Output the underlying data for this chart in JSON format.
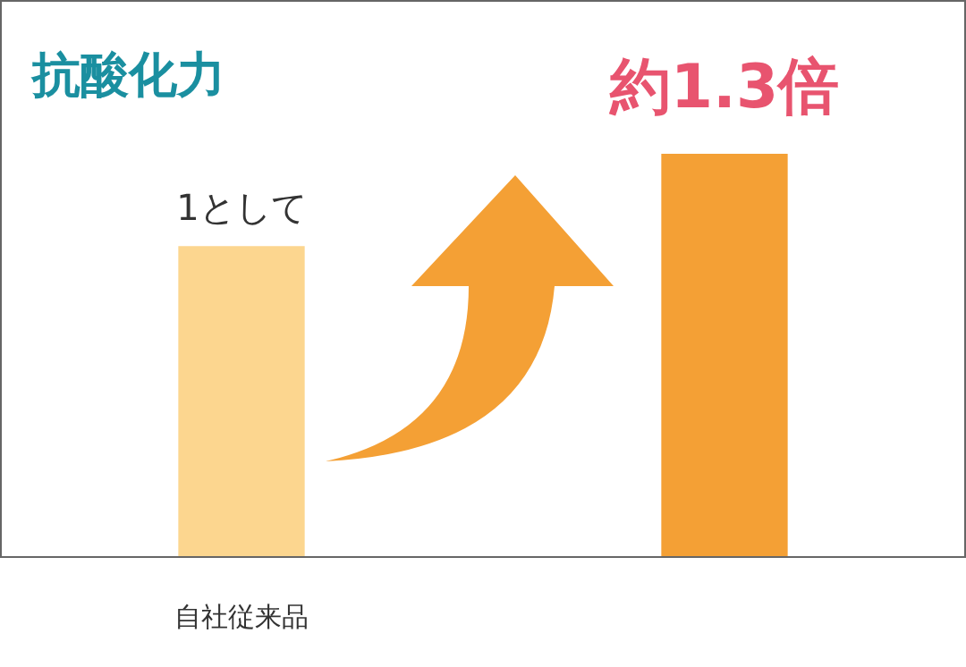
{
  "chart_data": {
    "type": "bar",
    "title": "抗酸化力",
    "categories": [
      "自社従来品",
      null
    ],
    "values": [
      1,
      1.3
    ],
    "colors": [
      "#fcd68f",
      "#f4a035"
    ],
    "value_labels": [
      "1として",
      "約1.3倍"
    ]
  }
}
